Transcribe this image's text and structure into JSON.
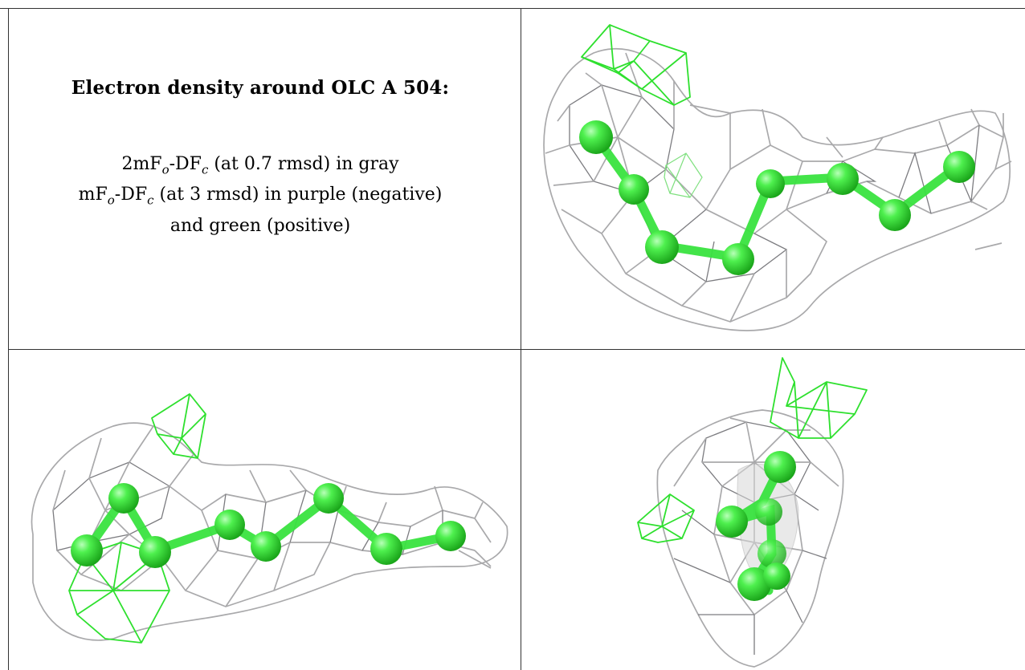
{
  "figure": {
    "title": "Electron density around OLC A 504:",
    "line1": {
      "prefix": "2mF",
      "sub1": "o",
      "mid": "-DF",
      "sub2": "c",
      "suffix": " (at 0.7 rmsd) in gray"
    },
    "line2": {
      "prefix": "mF",
      "sub1": "o",
      "mid": "-DF",
      "sub2": "c",
      "suffix": " (at 3 rmsd) in purple (negative)"
    },
    "line3": "and green (positive)"
  },
  "colors": {
    "gray_mesh": "#a9a9ab",
    "positive_mesh": "#2ee02e",
    "atoms": "#39e33f",
    "border": "#333333"
  }
}
